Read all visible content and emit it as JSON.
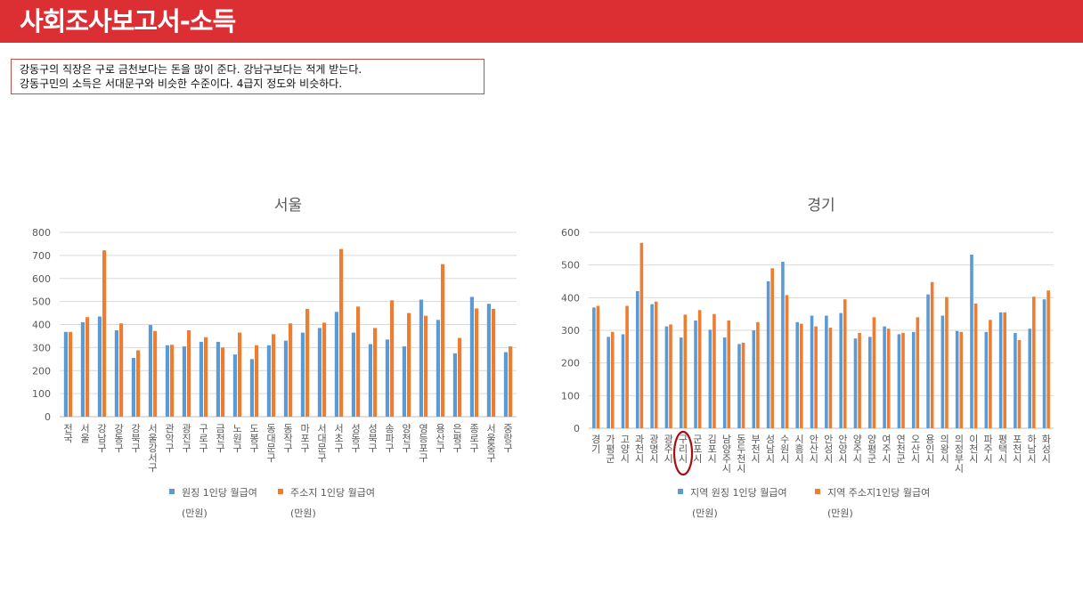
{
  "header": {
    "title": "사회조사보고서-소득"
  },
  "note": {
    "line1": "강동구의 직장은 구로 금천보다는 돈을 많이 준다. 강남구보다는 적게 받는다.",
    "line2": "강동구민의 소득은 서대문구와 비슷한 수준이다. 4급지 정도와 비슷하다."
  },
  "colors": {
    "header": "#dc2f34",
    "series1": "#5b9bd5",
    "series2": "#ed7d31",
    "highlight": "#a50d12"
  },
  "chart_data": [
    {
      "type": "bar",
      "title": "서울",
      "ylim": [
        0,
        800
      ],
      "yticks": [
        0,
        100,
        200,
        300,
        400,
        500,
        600,
        700,
        800
      ],
      "grid": true,
      "legend_position": "bottom",
      "categories": [
        "전국",
        "서울",
        "강남구",
        "강동구",
        "강북구",
        "서울강서구",
        "관악구",
        "광진구",
        "구로구",
        "금천구",
        "노원구",
        "도봉구",
        "동대문구",
        "동작구",
        "마포구",
        "서대문구",
        "서초구",
        "성동구",
        "성북구",
        "송파구",
        "양천구",
        "영등포구",
        "용산구",
        "은평구",
        "종로구",
        "서울중구",
        "중랑구"
      ],
      "series": [
        {
          "name": "원징 1인당 월급여",
          "unit": "(만원)",
          "values": [
            368,
            410,
            435,
            375,
            255,
            398,
            310,
            305,
            325,
            325,
            270,
            250,
            310,
            330,
            365,
            385,
            455,
            365,
            315,
            335,
            305,
            508,
            420,
            275,
            520,
            490,
            280
          ]
        },
        {
          "name": "주소지 1인당 월급여",
          "unit": "(만원)",
          "values": [
            368,
            432,
            722,
            405,
            288,
            372,
            312,
            375,
            345,
            300,
            365,
            310,
            358,
            405,
            468,
            408,
            728,
            478,
            385,
            505,
            450,
            438,
            662,
            342,
            470,
            468,
            305
          ]
        }
      ]
    },
    {
      "type": "bar",
      "title": "경기",
      "ylim": [
        0,
        600
      ],
      "yticks": [
        0,
        100,
        200,
        300,
        400,
        500,
        600
      ],
      "grid": true,
      "legend_position": "bottom",
      "highlight_category": "구리시",
      "categories": [
        "경기",
        "가평군",
        "고양시",
        "과천시",
        "광명시",
        "광주시",
        "구리시",
        "군포시",
        "김포시",
        "남양주시",
        "동두천시",
        "부천시",
        "성남시",
        "수원시",
        "시흥시",
        "안산시",
        "안성시",
        "안양시",
        "양주시",
        "양평군",
        "여주시",
        "연천군",
        "오산시",
        "용인시",
        "의왕시",
        "의정부시",
        "이천시",
        "파주시",
        "평택시",
        "포천시",
        "하남시",
        "화성시"
      ],
      "series": [
        {
          "name": "지역 원징 1인당 월급여",
          "unit": "(만원)",
          "values": [
            370,
            280,
            288,
            420,
            380,
            312,
            278,
            330,
            302,
            278,
            258,
            300,
            450,
            510,
            325,
            345,
            345,
            353,
            275,
            280,
            312,
            288,
            295,
            410,
            345,
            298,
            532,
            295,
            355,
            292,
            305,
            395
          ]
        },
        {
          "name": "지역 주소지1인당 월급여",
          "unit": "(만원)",
          "values": [
            375,
            295,
            375,
            568,
            388,
            318,
            348,
            362,
            350,
            330,
            262,
            325,
            490,
            408,
            320,
            312,
            308,
            395,
            292,
            340,
            305,
            292,
            340,
            448,
            402,
            295,
            382,
            332,
            355,
            270,
            403,
            422
          ]
        }
      ]
    }
  ]
}
